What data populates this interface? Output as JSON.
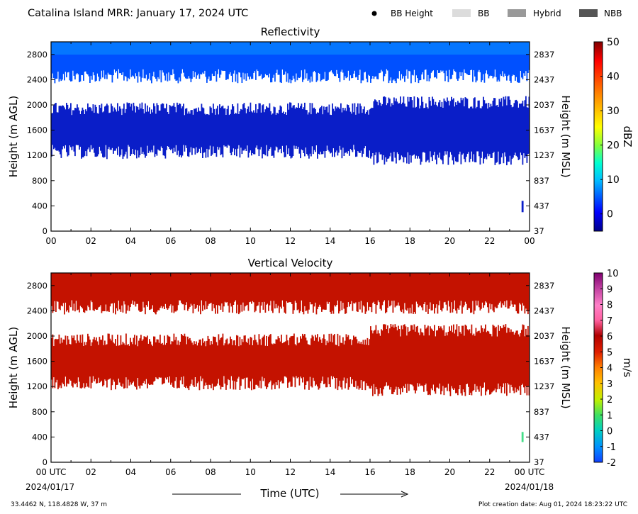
{
  "header": {
    "title": "Catalina Island MRR:  January 17, 2024 UTC",
    "legend": [
      {
        "label": "BB Height",
        "kind": "dot",
        "color": "#000000"
      },
      {
        "label": "BB",
        "kind": "box",
        "color": "#dcdcdc"
      },
      {
        "label": "Hybrid",
        "kind": "box",
        "color": "#999999"
      },
      {
        "label": "NBB",
        "kind": "box",
        "color": "#555555"
      }
    ]
  },
  "footer": {
    "location": "33.4462 N, 118.4828 W, 37 m",
    "creation": "Plot creation date: Aug 01, 2024 18:23:22 UTC",
    "xlabel": "Time (UTC)",
    "start_date": "2024/01/17",
    "end_date": "2024/01/18"
  },
  "colors": {
    "reflectivity_light": "#0a96ff",
    "reflectivity_mid": "#0050ff",
    "reflectivity_dark": "#0a1ec8",
    "velocity": "#c41200",
    "velocity_low": "#44dd88"
  },
  "chart_data": [
    {
      "type": "heatmap",
      "title": "Reflectivity",
      "ylabel_left": "Height (m AGL)",
      "ylabel_right": "Height (m MSL)",
      "x_ticks": [
        "00",
        "02",
        "04",
        "06",
        "08",
        "10",
        "12",
        "14",
        "16",
        "18",
        "20",
        "22",
        "00"
      ],
      "xlim": [
        0,
        24
      ],
      "ylim": [
        0,
        3000
      ],
      "y_ticks_left": [
        0,
        400,
        800,
        1200,
        1600,
        2000,
        2400,
        2800
      ],
      "y_ticks_right": [
        37,
        437,
        837,
        1237,
        1637,
        2037,
        2437,
        2837
      ],
      "colorbar": {
        "label": "dBZ",
        "min": -5,
        "max": 50,
        "ticks": [
          0,
          10,
          20,
          30,
          40,
          50
        ]
      },
      "layers": [
        {
          "name": "upper",
          "x0": 0,
          "x1": 24,
          "y_top": 3000,
          "y_bottom": 2500,
          "value_dbz": 0
        },
        {
          "name": "lower",
          "x0": 0,
          "x1": 16,
          "y_top": 1900,
          "y_bottom": 1300,
          "value_dbz": -2
        },
        {
          "name": "lower-dense",
          "x0": 16,
          "x1": 24,
          "y_top": 2000,
          "y_bottom": 1200,
          "value_dbz": -1
        },
        {
          "name": "near-surface",
          "x0": 23.6,
          "x1": 23.7,
          "y_top": 480,
          "y_bottom": 300,
          "value_dbz": -1
        }
      ]
    },
    {
      "type": "heatmap",
      "title": "Vertical Velocity",
      "ylabel_left": "Height (m AGL)",
      "ylabel_right": "Height (m MSL)",
      "x_ticks": [
        "00 UTC",
        "02",
        "04",
        "06",
        "08",
        "10",
        "12",
        "14",
        "16",
        "18",
        "20",
        "22",
        "00 UTC"
      ],
      "xlim": [
        0,
        24
      ],
      "ylim": [
        0,
        3000
      ],
      "y_ticks_left": [
        0,
        400,
        800,
        1200,
        1600,
        2000,
        2400,
        2800
      ],
      "y_ticks_right": [
        37,
        437,
        837,
        1237,
        1637,
        2037,
        2437,
        2837
      ],
      "colorbar": {
        "label": "m/s",
        "min": -2,
        "max": 10,
        "ticks": [
          -2,
          -1,
          0,
          1,
          2,
          3,
          4,
          5,
          6,
          7,
          8,
          9,
          10
        ]
      },
      "layers": [
        {
          "name": "upper",
          "x0": 0,
          "x1": 24,
          "y_top": 3000,
          "y_bottom": 2500,
          "value_ms": 6
        },
        {
          "name": "lower",
          "x0": 0,
          "x1": 16,
          "y_top": 1900,
          "y_bottom": 1300,
          "value_ms": 6
        },
        {
          "name": "lower-dense",
          "x0": 16,
          "x1": 24,
          "y_top": 2050,
          "y_bottom": 1200,
          "value_ms": 6
        },
        {
          "name": "near-surface",
          "x0": 23.6,
          "x1": 23.7,
          "y_top": 480,
          "y_bottom": 320,
          "value_ms": 0.3
        }
      ]
    }
  ]
}
